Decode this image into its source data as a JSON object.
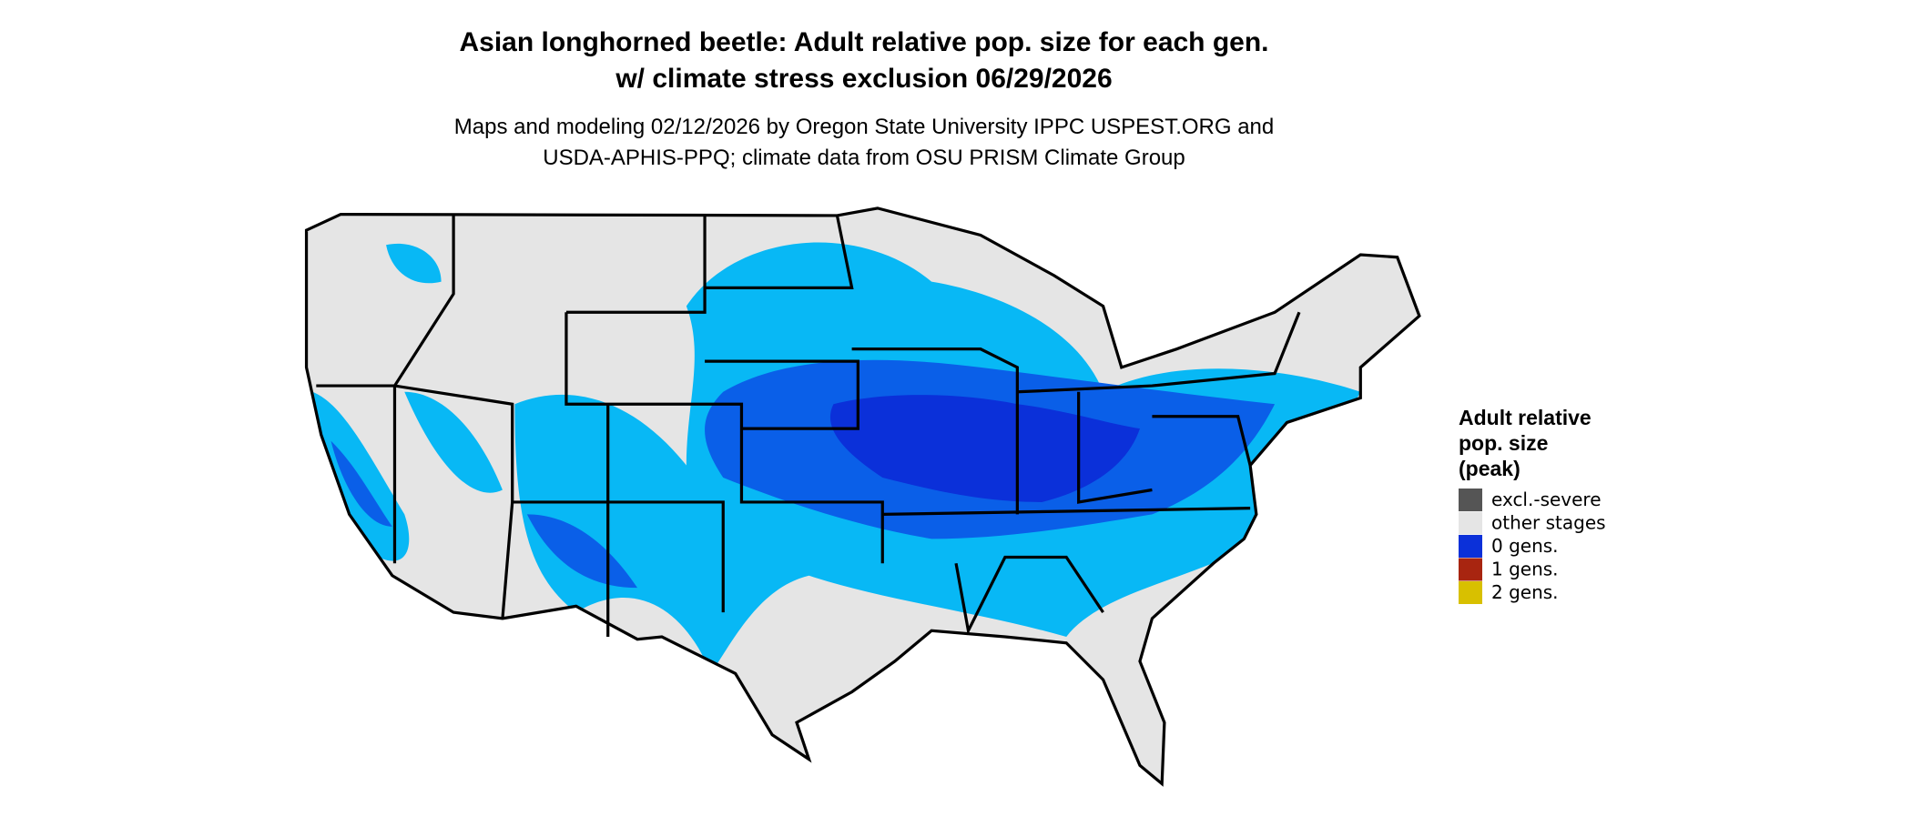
{
  "title": [
    "Asian longhorned beetle: Adult relative pop. size for each gen.",
    "w/ climate stress exclusion 06/29/2026"
  ],
  "subtitle": [
    "Maps and modeling 02/12/2026 by Oregon State University IPPC USPEST.ORG and",
    "USDA-APHIS-PPQ; climate data from OSU PRISM Climate Group"
  ],
  "legend": {
    "title": [
      "Adult relative",
      "pop. size",
      "(peak)"
    ],
    "items": [
      {
        "label": "excl.-severe",
        "color": "#555555"
      },
      {
        "label": "other stages",
        "color": "#e5e5e5"
      },
      {
        "label": "0 gens.",
        "color": "#0b30d9"
      },
      {
        "label": "1 gens.",
        "color": "#a82510"
      },
      {
        "label": "2 gens.",
        "color": "#d8c000"
      }
    ]
  }
}
